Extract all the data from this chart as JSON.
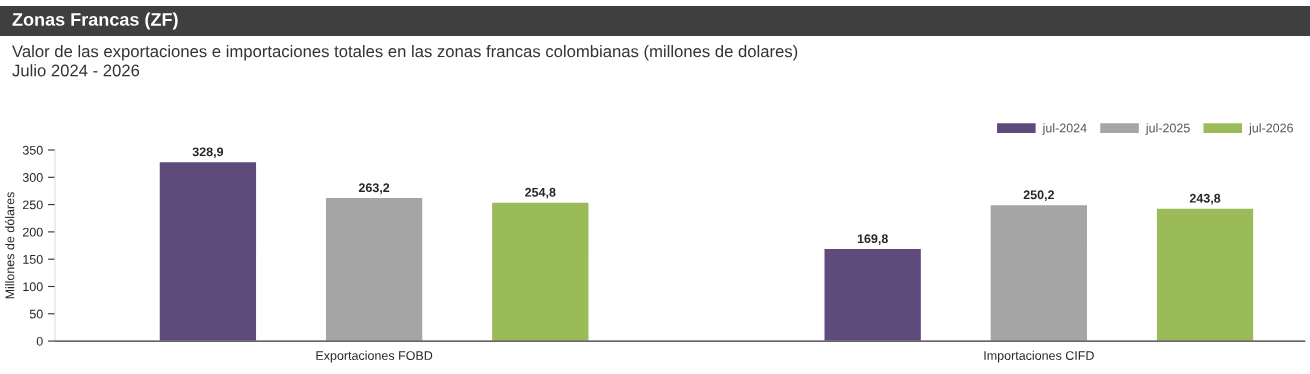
{
  "chart_data": {
    "type": "bar",
    "title": "Zonas Francas (ZF)",
    "subtitle": "Valor de las exportaciones e importaciones totales en las zonas francas colombianas (millones de dolares)\nJulio 2024 - 2026",
    "ylabel": "Millones de dólares",
    "categories": [
      "Exportaciones FOBD",
      "Importaciones CIFD"
    ],
    "series": [
      {
        "name": "jul-2024",
        "color": "#5f4b7b",
        "values": [
          328.9,
          169.8
        ],
        "value_labels": [
          "328,9",
          "169,8"
        ]
      },
      {
        "name": "jul-2025",
        "color": "#a5a5a5",
        "values": [
          263.2,
          250.2
        ],
        "value_labels": [
          "263,2",
          "250,2"
        ]
      },
      {
        "name": "jul-2026",
        "color": "#9bbb59",
        "values": [
          254.8,
          243.8
        ],
        "value_labels": [
          "254,8",
          "243,8"
        ]
      }
    ],
    "ylim": [
      0,
      350
    ],
    "yticks": [
      0,
      50,
      100,
      150,
      200,
      250,
      300,
      350
    ],
    "grid": false,
    "legend": "top right"
  }
}
